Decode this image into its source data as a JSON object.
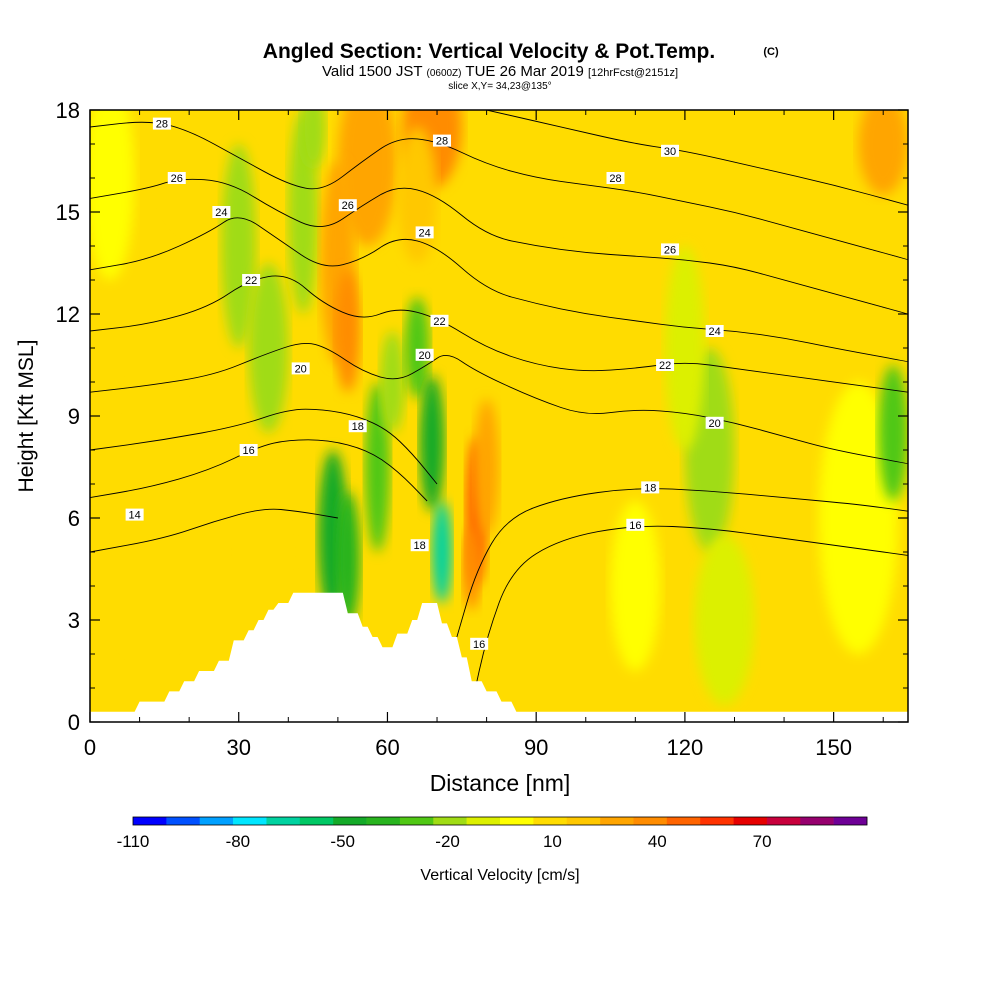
{
  "header": {
    "title": "Angled Section: Vertical Velocity & Pot.Temp.",
    "title_mark": "(C)",
    "valid_prefix": "Valid 1500 JST",
    "valid_utc": "(0600Z)",
    "valid_date": "TUE 26 Mar 2019",
    "valid_fcst": "[12hrFcst@2151z]",
    "slice": "slice X,Y= 34,23@135°"
  },
  "chart_data": {
    "type": "heatmap",
    "xlabel": "Distance [nm]",
    "ylabel": "Height [Kft MSL]",
    "xlim": [
      0,
      165
    ],
    "ylim": [
      0,
      18
    ],
    "x_ticks": [
      0,
      30,
      60,
      90,
      120,
      150
    ],
    "y_ticks": [
      0,
      3,
      6,
      9,
      12,
      15,
      18
    ],
    "colorbar": {
      "label": "Vertical Velocity [cm/s]",
      "ticks": [
        "-110",
        "-80",
        "-50",
        "-20",
        "10",
        "40",
        "70"
      ],
      "bins": [
        -110,
        -100,
        -90,
        -80,
        -70,
        -60,
        -50,
        -40,
        -30,
        -20,
        -10,
        0,
        10,
        20,
        30,
        40,
        50,
        60,
        70,
        80,
        90,
        100
      ],
      "colors": [
        "#0000ff",
        "#0050ff",
        "#00a0ff",
        "#00e6ff",
        "#00d2a0",
        "#00c864",
        "#14aa28",
        "#28b41e",
        "#50c814",
        "#a0dc14",
        "#dcf000",
        "#ffff00",
        "#ffdc00",
        "#ffc800",
        "#ffa500",
        "#ff8c00",
        "#ff6400",
        "#ff3200",
        "#e60000",
        "#c8003c",
        "#96006e",
        "#6e0096"
      ]
    },
    "terrain_profile": {
      "distance_nm": [
        0,
        9,
        10,
        15,
        16,
        18,
        19,
        21,
        22,
        25,
        26,
        28,
        29,
        31,
        32,
        33,
        34,
        35,
        36,
        37,
        38,
        40,
        41,
        43,
        44,
        46,
        47,
        51,
        52,
        54,
        55,
        56,
        57,
        58,
        59,
        61,
        62,
        64,
        65,
        66,
        67,
        70,
        71,
        72,
        73,
        74,
        75,
        76,
        77,
        79,
        80,
        82,
        83,
        85,
        86,
        89,
        90,
        165
      ],
      "height_kft": [
        0.3,
        0.3,
        0.6,
        0.6,
        0.9,
        0.9,
        1.2,
        1.2,
        1.5,
        1.5,
        1.8,
        1.8,
        2.4,
        2.4,
        2.7,
        2.7,
        3.0,
        3.0,
        3.3,
        3.3,
        3.5,
        3.5,
        3.8,
        3.8,
        3.8,
        3.8,
        3.8,
        3.8,
        3.2,
        3.2,
        2.8,
        2.8,
        2.5,
        2.5,
        2.2,
        2.2,
        2.6,
        2.6,
        3.0,
        3.0,
        3.5,
        3.5,
        2.9,
        2.9,
        2.5,
        2.5,
        1.9,
        1.9,
        1.2,
        1.2,
        0.9,
        0.9,
        0.6,
        0.6,
        0.3,
        0.3,
        0.3,
        0.3
      ]
    },
    "isentrope_labels": [
      {
        "text": "28",
        "x": 14.5,
        "y": 17.6
      },
      {
        "text": "26",
        "x": 17.5,
        "y": 16.0
      },
      {
        "text": "24",
        "x": 26.5,
        "y": 15.0
      },
      {
        "text": "22",
        "x": 32.5,
        "y": 13.0
      },
      {
        "text": "20",
        "x": 42.5,
        "y": 10.4
      },
      {
        "text": "16",
        "x": 32.0,
        "y": 8.0
      },
      {
        "text": "14",
        "x": 9.0,
        "y": 6.1
      },
      {
        "text": "18",
        "x": 54.0,
        "y": 8.7
      },
      {
        "text": "26",
        "x": 52.0,
        "y": 15.2
      },
      {
        "text": "28",
        "x": 71.0,
        "y": 17.1
      },
      {
        "text": "24",
        "x": 67.5,
        "y": 14.4
      },
      {
        "text": "22",
        "x": 70.5,
        "y": 11.8
      },
      {
        "text": "20",
        "x": 67.5,
        "y": 10.8
      },
      {
        "text": "18",
        "x": 66.5,
        "y": 5.2
      },
      {
        "text": "16",
        "x": 78.5,
        "y": 2.3
      },
      {
        "text": "28",
        "x": 106.0,
        "y": 16.0
      },
      {
        "text": "30",
        "x": 117.0,
        "y": 16.8
      },
      {
        "text": "26",
        "x": 117.0,
        "y": 13.9
      },
      {
        "text": "24",
        "x": 126.0,
        "y": 11.5
      },
      {
        "text": "22",
        "x": 116.0,
        "y": 10.5
      },
      {
        "text": "20",
        "x": 126.0,
        "y": 8.8
      },
      {
        "text": "18",
        "x": 113.0,
        "y": 6.9
      },
      {
        "text": "16",
        "x": 110.0,
        "y": 5.8
      }
    ],
    "isentropes": [
      {
        "level": "14",
        "x": [
          0,
          15,
          25,
          35,
          42,
          50
        ],
        "y": [
          5.0,
          5.4,
          5.9,
          6.3,
          6.2,
          6.0
        ]
      },
      {
        "level": "16",
        "x": [
          0,
          12,
          24,
          34,
          40,
          48,
          56,
          62,
          68
        ],
        "y": [
          6.6,
          6.9,
          7.4,
          8.1,
          8.3,
          8.3,
          8.0,
          7.4,
          6.5
        ]
      },
      {
        "level": "18",
        "x": [
          0,
          15,
          30,
          40,
          47,
          54,
          60,
          65,
          70
        ],
        "y": [
          8.0,
          8.3,
          8.7,
          9.2,
          9.2,
          9.0,
          8.6,
          7.9,
          7.0
        ]
      },
      {
        "level": "20",
        "x": [
          0,
          12,
          25,
          35,
          43,
          48,
          55,
          62,
          68,
          72,
          78,
          90,
          100,
          110,
          120,
          130,
          140,
          150,
          165
        ],
        "y": [
          9.7,
          9.9,
          10.2,
          10.8,
          11.2,
          11.0,
          10.3,
          10.0,
          10.5,
          10.9,
          10.3,
          9.5,
          9.0,
          9.2,
          9.1,
          8.8,
          8.4,
          8.0,
          7.6
        ]
      },
      {
        "level": "22",
        "x": [
          0,
          12,
          24,
          32,
          40,
          47,
          55,
          62,
          70,
          80,
          90,
          100,
          110,
          120,
          130,
          140,
          150,
          165
        ],
        "y": [
          11.5,
          11.7,
          12.2,
          13.0,
          13.2,
          12.3,
          11.8,
          12.2,
          11.9,
          11.0,
          10.5,
          10.3,
          10.4,
          10.6,
          10.4,
          10.2,
          10.0,
          9.7
        ]
      },
      {
        "level": "24",
        "x": [
          0,
          12,
          24,
          30,
          38,
          47,
          55,
          62,
          70,
          80,
          90,
          100,
          110,
          120,
          130,
          140,
          150,
          165
        ],
        "y": [
          13.3,
          13.6,
          14.4,
          15.0,
          14.2,
          13.3,
          13.6,
          14.3,
          14.0,
          12.7,
          12.3,
          12.0,
          11.8,
          11.6,
          11.5,
          11.3,
          11.0,
          10.6
        ]
      },
      {
        "level": "26",
        "x": [
          0,
          12,
          18,
          28,
          38,
          47,
          55,
          62,
          70,
          80,
          90,
          100,
          110,
          120,
          130,
          140,
          150,
          165
        ],
        "y": [
          15.4,
          15.7,
          16.0,
          15.9,
          15.0,
          14.4,
          15.2,
          15.8,
          15.5,
          14.3,
          14.0,
          13.8,
          13.7,
          13.6,
          13.4,
          13.0,
          12.6,
          12.0
        ]
      },
      {
        "level": "28",
        "x": [
          0,
          12,
          20,
          30,
          40,
          47,
          55,
          62,
          70,
          80,
          90,
          100,
          110,
          120,
          130,
          140,
          150,
          165
        ],
        "y": [
          17.5,
          17.7,
          17.4,
          16.6,
          15.8,
          15.6,
          16.5,
          17.2,
          17.1,
          16.4,
          16.0,
          15.8,
          15.6,
          15.3,
          15.0,
          14.6,
          14.2,
          13.6
        ]
      },
      {
        "level": "30",
        "x": [
          80,
          95,
          110,
          120,
          135,
          150,
          165
        ],
        "y": [
          18.0,
          17.5,
          17.0,
          16.8,
          16.3,
          15.8,
          15.2
        ]
      },
      {
        "level": "16",
        "x": [
          77,
          80,
          85,
          95,
          110,
          125,
          140,
          155,
          165
        ],
        "y": [
          0.5,
          2.5,
          4.5,
          5.4,
          5.8,
          5.7,
          5.4,
          5.1,
          4.9
        ]
      },
      {
        "level": "18",
        "x": [
          74,
          78,
          84,
          95,
          110,
          125,
          140,
          155,
          165
        ],
        "y": [
          2.5,
          4.5,
          6.0,
          6.6,
          6.9,
          6.8,
          6.6,
          6.4,
          6.2
        ]
      }
    ],
    "velocity_features": [
      {
        "x": 4,
        "y": 16,
        "rx": 5,
        "ry": 3,
        "v": 5
      },
      {
        "x": 22,
        "y": 17,
        "rx": 8,
        "ry": 2.5,
        "v": 15
      },
      {
        "x": 12,
        "y": 6,
        "rx": 10,
        "ry": 4,
        "v": 12
      },
      {
        "x": 35,
        "y": 5,
        "rx": 8,
        "ry": 3.5,
        "v": 18
      },
      {
        "x": 30,
        "y": 14,
        "rx": 3.5,
        "ry": 3,
        "v": -15
      },
      {
        "x": 36,
        "y": 11,
        "rx": 4,
        "ry": 2.5,
        "v": -12
      },
      {
        "x": 43,
        "y": 15,
        "rx": 3,
        "ry": 3,
        "v": -15
      },
      {
        "x": 45,
        "y": 17.5,
        "rx": 2.5,
        "ry": 1.2,
        "v": -20
      },
      {
        "x": 56,
        "y": 16.5,
        "rx": 6,
        "ry": 2.5,
        "v": 35
      },
      {
        "x": 69,
        "y": 17.5,
        "rx": 6,
        "ry": 1.8,
        "v": 42
      },
      {
        "x": 50,
        "y": 13.5,
        "rx": 3.5,
        "ry": 3,
        "v": 30
      },
      {
        "x": 52,
        "y": 11.5,
        "rx": 2.5,
        "ry": 1.8,
        "v": 42
      },
      {
        "x": 66,
        "y": 15.5,
        "rx": 4,
        "ry": 2,
        "v": 25
      },
      {
        "x": 49,
        "y": 5.5,
        "rx": 3,
        "ry": 2.5,
        "v": -45
      },
      {
        "x": 52,
        "y": 4.8,
        "rx": 2.5,
        "ry": 2,
        "v": -35
      },
      {
        "x": 58,
        "y": 7.5,
        "rx": 2.5,
        "ry": 2.5,
        "v": -25
      },
      {
        "x": 61,
        "y": 10,
        "rx": 2.5,
        "ry": 1.5,
        "v": -18
      },
      {
        "x": 66,
        "y": 11,
        "rx": 2.5,
        "ry": 1.5,
        "v": -30
      },
      {
        "x": 69,
        "y": 8.2,
        "rx": 2.5,
        "ry": 2,
        "v": -45
      },
      {
        "x": 71,
        "y": 5,
        "rx": 2,
        "ry": 1.5,
        "v": -65
      },
      {
        "x": 78,
        "y": 6.2,
        "rx": 2.2,
        "ry": 2.2,
        "v": 50
      },
      {
        "x": 77,
        "y": 4.5,
        "rx": 1.8,
        "ry": 1.2,
        "v": 45
      },
      {
        "x": 80,
        "y": 7.5,
        "rx": 2.5,
        "ry": 2,
        "v": 30
      },
      {
        "x": 125,
        "y": 8,
        "rx": 5,
        "ry": 3,
        "v": -15
      },
      {
        "x": 110,
        "y": 4,
        "rx": 5,
        "ry": 2.5,
        "v": 2
      },
      {
        "x": 128,
        "y": 3,
        "rx": 6,
        "ry": 2.5,
        "v": -10
      },
      {
        "x": 155,
        "y": 6,
        "rx": 8,
        "ry": 4,
        "v": 8
      },
      {
        "x": 162,
        "y": 8.5,
        "rx": 3,
        "ry": 2,
        "v": -30
      },
      {
        "x": 150,
        "y": 13,
        "rx": 6,
        "ry": 3,
        "v": 18
      },
      {
        "x": 160,
        "y": 17,
        "rx": 5,
        "ry": 1.5,
        "v": 30
      },
      {
        "x": 100,
        "y": 12,
        "rx": 8,
        "ry": 2,
        "v": 15
      },
      {
        "x": 120,
        "y": 11,
        "rx": 4,
        "ry": 3,
        "v": -8
      }
    ]
  }
}
